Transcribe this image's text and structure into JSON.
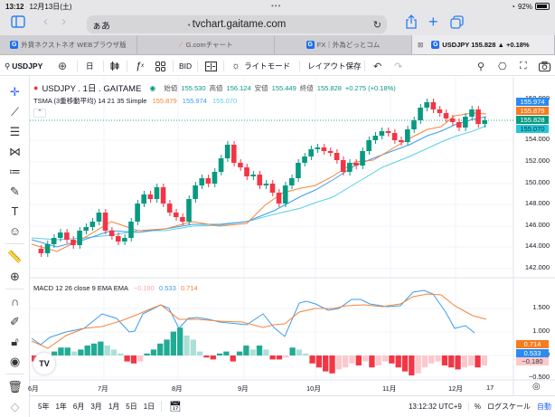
{
  "status_bar": {
    "time": "13:12",
    "date": "12月13日(土)",
    "battery": "92%"
  },
  "browser": {
    "input_mode": "ぁあ",
    "url": "tvchart.gaitame.com",
    "tabs": [
      {
        "label": "外貨ネクストネオ WEBブラウザ版",
        "active": false
      },
      {
        "label": "G.comチャート",
        "active": false
      },
      {
        "label": "FX｜外為どっとコム",
        "active": false
      },
      {
        "label": "USDJPY 155.828 ▲ +0.18%",
        "active": true
      }
    ]
  },
  "toolbar": {
    "symbol": "USDJPY",
    "interval": "日",
    "bid": "BID",
    "theme": "ライトモード",
    "save_layout": "レイアウト保存"
  },
  "legend": {
    "title": "USDJPY . 1日 . GAITAME",
    "open_label": "始値",
    "open": "155.530",
    "high_label": "高値",
    "high": "156.124",
    "low_label": "安値",
    "low": "155.449",
    "close_label": "終値",
    "close": "155.828",
    "change": "+0.275 (+0.18%)",
    "tsma_label": "TSMA (3重移動平均) 14 21 35 Simple",
    "tsma_values": [
      "155.879",
      "155.974",
      "155.070"
    ],
    "macd_label": "MACD 12 26 close 9 EMA EMA",
    "macd_values": [
      "−0.180",
      "0.533",
      "0.714"
    ]
  },
  "colors": {
    "up": "#089981",
    "down": "#f23645",
    "ma14": "#f7843a",
    "ma21": "#3c9cf0",
    "ma35": "#5ad0e6",
    "accent": "#2962ff"
  },
  "price_axis": {
    "ticks": [
      "158.000",
      "154.000",
      "152.000",
      "150.000",
      "148.000",
      "146.000",
      "144.000",
      "142.000"
    ],
    "tags": [
      {
        "value": "155.974",
        "color": "#2a8bf2"
      },
      {
        "value": "155.879",
        "color": "#f57c1f"
      },
      {
        "value": "155.828",
        "color": "#089981"
      },
      {
        "value": "155.070",
        "color": "#26c6da"
      }
    ]
  },
  "macd_axis": {
    "ticks": [
      "1.500",
      "1.000",
      "0.000",
      "−0.500"
    ],
    "tags": [
      {
        "value": "0.714",
        "color": "#f57c1f"
      },
      {
        "value": "0.533",
        "color": "#2a8bf2"
      },
      {
        "value": "−0.180",
        "color": "#fcc8cc"
      }
    ]
  },
  "time_axis": [
    "6月",
    "7月",
    "8月",
    "9月",
    "10月",
    "11月",
    "12月",
    "17"
  ],
  "bottom_bar": {
    "ranges": [
      "5年",
      "1年",
      "6月",
      "3月",
      "1月",
      "5日",
      "1日"
    ],
    "clock": "13:12:32 UTC+9",
    "percent": "%",
    "log_scale": "ログスケール",
    "auto": "自動"
  }
}
